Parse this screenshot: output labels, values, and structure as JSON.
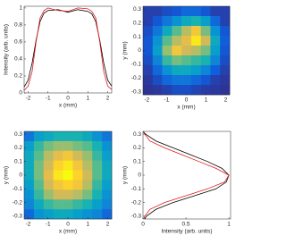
{
  "chart_data": [
    {
      "type": "line",
      "xlabel": "x (mm)",
      "ylabel": "Intensity (arb. units)",
      "xlim": [
        -2.2,
        2.2
      ],
      "ylim": [
        0,
        1.02
      ],
      "xticks": [
        -2,
        -1,
        0,
        1,
        2
      ],
      "yticks": [
        0,
        0.2,
        0.4,
        0.6,
        0.8,
        1
      ],
      "x": [
        -2.2,
        -2,
        -1.8,
        -1.6,
        -1.4,
        -1.2,
        -1,
        -0.5,
        0,
        0.5,
        1,
        1.2,
        1.4,
        1.6,
        1.8,
        2,
        2.2
      ],
      "series": [
        {
          "color": "#000000",
          "values": [
            0.07,
            0.15,
            0.35,
            0.62,
            0.84,
            0.94,
            0.97,
            0.98,
            0.95,
            0.98,
            0.96,
            0.93,
            0.84,
            0.62,
            0.35,
            0.15,
            0.08
          ]
        },
        {
          "color": "#e31a1c",
          "values": [
            0.03,
            0.08,
            0.25,
            0.6,
            0.88,
            0.97,
            1.0,
            0.97,
            0.96,
            1.0,
            0.99,
            0.96,
            0.88,
            0.6,
            0.25,
            0.08,
            0.04
          ]
        }
      ]
    },
    {
      "type": "heatmap",
      "xlabel": "x (mm)",
      "ylabel": "y (mm)",
      "xlim": [
        -2.2,
        2.2
      ],
      "ylim": [
        -0.32,
        0.32
      ],
      "xticks": [
        -2,
        -1,
        0,
        1,
        2
      ],
      "yticks": [
        -0.3,
        -0.2,
        -0.1,
        0,
        0.1,
        0.2,
        0.3
      ],
      "colormap": "parula",
      "z": [
        [
          0.05,
          0.05,
          0.08,
          0.1,
          0.15,
          0.15,
          0.1,
          0.05,
          0.05
        ],
        [
          0.05,
          0.1,
          0.2,
          0.3,
          0.4,
          0.45,
          0.35,
          0.15,
          0.05
        ],
        [
          0.08,
          0.2,
          0.4,
          0.55,
          0.7,
          0.85,
          0.6,
          0.3,
          0.1
        ],
        [
          0.1,
          0.3,
          0.55,
          0.7,
          0.8,
          0.95,
          0.75,
          0.4,
          0.12
        ],
        [
          0.1,
          0.35,
          0.65,
          0.85,
          0.75,
          0.7,
          0.6,
          0.35,
          0.1
        ],
        [
          0.08,
          0.25,
          0.5,
          0.6,
          0.55,
          0.5,
          0.45,
          0.25,
          0.08
        ],
        [
          0.05,
          0.15,
          0.3,
          0.4,
          0.4,
          0.35,
          0.25,
          0.12,
          0.05
        ],
        [
          0.03,
          0.08,
          0.15,
          0.2,
          0.2,
          0.15,
          0.1,
          0.05,
          0.03
        ],
        [
          0.02,
          0.03,
          0.05,
          0.08,
          0.08,
          0.06,
          0.04,
          0.03,
          0.02
        ]
      ]
    },
    {
      "type": "heatmap",
      "xlabel": "x (mm)",
      "ylabel": "y (mm)",
      "xlim": [
        -2.2,
        2.2
      ],
      "ylim": [
        -0.32,
        0.32
      ],
      "xticks": [
        -2,
        -1,
        0,
        1,
        2
      ],
      "yticks": [
        -0.3,
        -0.2,
        -0.1,
        0,
        0.1,
        0.2,
        0.3
      ],
      "colormap": "parula",
      "z": [
        [
          0.2,
          0.35,
          0.4,
          0.45,
          0.45,
          0.45,
          0.4,
          0.3,
          0.2
        ],
        [
          0.35,
          0.5,
          0.6,
          0.65,
          0.65,
          0.6,
          0.55,
          0.45,
          0.3
        ],
        [
          0.4,
          0.55,
          0.7,
          0.8,
          0.85,
          0.75,
          0.65,
          0.5,
          0.35
        ],
        [
          0.4,
          0.6,
          0.75,
          0.9,
          0.95,
          0.85,
          0.7,
          0.55,
          0.4
        ],
        [
          0.4,
          0.6,
          0.8,
          0.95,
          1.0,
          0.9,
          0.75,
          0.55,
          0.4
        ],
        [
          0.35,
          0.55,
          0.75,
          0.85,
          0.9,
          0.85,
          0.7,
          0.5,
          0.35
        ],
        [
          0.3,
          0.5,
          0.65,
          0.75,
          0.75,
          0.7,
          0.6,
          0.45,
          0.3
        ],
        [
          0.25,
          0.4,
          0.5,
          0.55,
          0.55,
          0.5,
          0.45,
          0.35,
          0.25
        ],
        [
          0.15,
          0.3,
          0.35,
          0.4,
          0.4,
          0.35,
          0.3,
          0.25,
          0.15
        ]
      ]
    },
    {
      "type": "line",
      "orientation": "horizontal",
      "xlabel": "Intensity (arb. units)",
      "ylabel": "y (mm)",
      "xlim": [
        0,
        1.02
      ],
      "ylim": [
        -0.32,
        0.32
      ],
      "xticks": [
        0,
        0.5,
        1
      ],
      "yticks": [
        -0.3,
        -0.2,
        -0.1,
        0,
        0.1,
        0.2,
        0.3
      ],
      "y": [
        0.32,
        0.3,
        0.25,
        0.2,
        0.15,
        0.1,
        0.05,
        0,
        -0.05,
        -0.1,
        -0.15,
        -0.2,
        -0.25,
        -0.3,
        -0.32
      ],
      "series": [
        {
          "color": "#000000",
          "values": [
            0.0,
            0.03,
            0.15,
            0.35,
            0.55,
            0.75,
            0.92,
            1.0,
            0.97,
            0.85,
            0.6,
            0.35,
            0.15,
            0.04,
            0.02
          ]
        },
        {
          "color": "#e31a1c",
          "values": [
            0.0,
            0.02,
            0.08,
            0.25,
            0.45,
            0.65,
            0.85,
            1.0,
            0.95,
            0.75,
            0.5,
            0.25,
            0.08,
            0.02,
            0.01
          ]
        }
      ]
    }
  ]
}
